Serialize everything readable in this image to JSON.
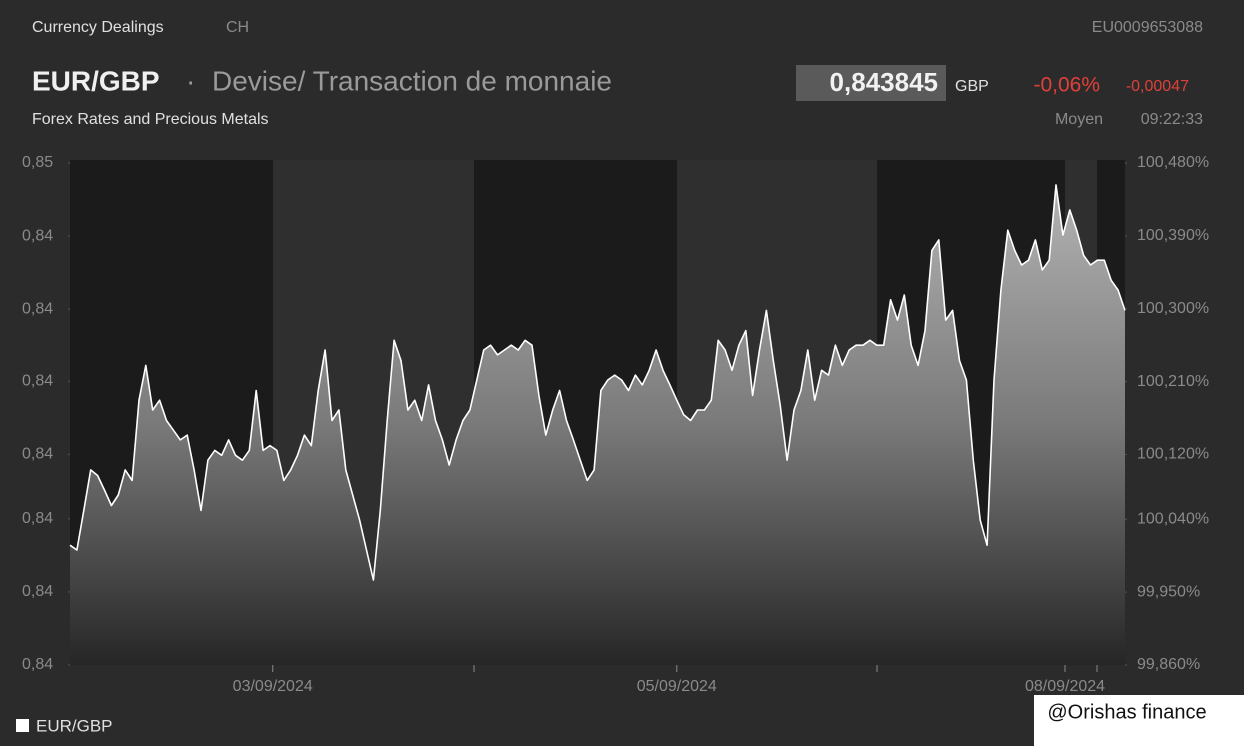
{
  "header": {
    "section": "Currency Dealings",
    "country": "CH",
    "isin": "EU0009653088",
    "symbol": "EUR/GBP",
    "separator": "·",
    "description": "Devise/ Transaction de monnaie",
    "price": "0,843845",
    "currency": "GBP",
    "change_pct": "-0,06%",
    "change_abs": "-0,00047",
    "category": "Forex Rates and Precious Metals",
    "price_type": "Moyen",
    "time": "09:22:33"
  },
  "watermark": "@Orishas finance",
  "chart_data": {
    "type": "area",
    "ylim": [
      0.8401,
      0.84532
    ],
    "yticks": [
      {
        "value": 0.8401,
        "label": "0,84"
      },
      {
        "value": 0.84086,
        "label": "0,84"
      },
      {
        "value": 0.84162,
        "label": "0,84"
      },
      {
        "value": 0.84229,
        "label": "0,84"
      },
      {
        "value": 0.84305,
        "label": "0,84"
      },
      {
        "value": 0.8438,
        "label": "0,84"
      },
      {
        "value": 0.84456,
        "label": "0,84"
      },
      {
        "value": 0.84532,
        "label": "0,85"
      }
    ],
    "y2lim": [
      99.86,
      100.48
    ],
    "y2ticks": [
      {
        "value": 99.86,
        "label": "99,860%"
      },
      {
        "value": 99.95,
        "label": "99,950%"
      },
      {
        "value": 100.04,
        "label": "100,040%"
      },
      {
        "value": 100.12,
        "label": "100,120%"
      },
      {
        "value": 100.21,
        "label": "100,210%"
      },
      {
        "value": 100.3,
        "label": "100,300%"
      },
      {
        "value": 100.39,
        "label": "100,390%"
      },
      {
        "value": 100.48,
        "label": "100,480%"
      }
    ],
    "xlim": [
      0,
      153
    ],
    "xticks": [
      {
        "value": 29.4,
        "label": "03/09/2024"
      },
      {
        "value": 88,
        "label": "05/09/2024"
      },
      {
        "value": 144.3,
        "label": "08/09/2024"
      }
    ],
    "grid": false,
    "legend": "bottom-left",
    "series": [
      {
        "name": "EUR/GBP",
        "color": "#ffffff",
        "axis": "y2",
        "values": [
          100.008,
          100.002,
          100.051,
          100.101,
          100.094,
          100.076,
          100.057,
          100.07,
          100.101,
          100.088,
          100.187,
          100.23,
          100.175,
          100.187,
          100.162,
          100.15,
          100.138,
          100.144,
          100.101,
          100.051,
          100.113,
          100.125,
          100.119,
          100.138,
          100.119,
          100.113,
          100.125,
          100.199,
          100.125,
          100.131,
          100.125,
          100.088,
          100.101,
          100.119,
          100.144,
          100.131,
          100.199,
          100.249,
          100.162,
          100.175,
          100.101,
          100.07,
          100.039,
          100.002,
          99.965,
          100.051,
          100.162,
          100.261,
          100.236,
          100.175,
          100.187,
          100.162,
          100.206,
          100.162,
          100.138,
          100.107,
          100.138,
          100.162,
          100.175,
          100.212,
          100.249,
          100.255,
          100.243,
          100.249,
          100.255,
          100.249,
          100.261,
          100.255,
          100.193,
          100.144,
          100.175,
          100.199,
          100.162,
          100.138,
          100.113,
          100.088,
          100.101,
          100.199,
          100.212,
          100.218,
          100.212,
          100.199,
          100.218,
          100.206,
          100.224,
          100.249,
          100.224,
          100.206,
          100.187,
          100.169,
          100.162,
          100.175,
          100.175,
          100.187,
          100.261,
          100.249,
          100.224,
          100.255,
          100.273,
          100.193,
          100.249,
          100.298,
          100.236,
          100.181,
          100.113,
          100.175,
          100.199,
          100.249,
          100.187,
          100.224,
          100.218,
          100.255,
          100.23,
          100.249,
          100.255,
          100.255,
          100.261,
          100.255,
          100.255,
          100.311,
          100.286,
          100.317,
          100.255,
          100.23,
          100.273,
          100.372,
          100.385,
          100.286,
          100.298,
          100.236,
          100.212,
          100.113,
          100.039,
          100.008,
          100.212,
          100.323,
          100.397,
          100.372,
          100.354,
          100.36,
          100.385,
          100.348,
          100.36,
          100.453,
          100.391,
          100.422,
          100.397,
          100.366,
          100.354,
          100.36,
          100.36,
          100.335,
          100.323,
          100.298
        ]
      }
    ]
  }
}
